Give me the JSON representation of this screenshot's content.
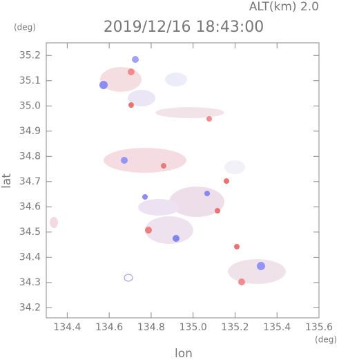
{
  "chart_data": {
    "type": "map",
    "header": "ALT(km)  2.0",
    "title": "2019/12/16 18:43:00",
    "y_unit": "(deg)",
    "x_unit": "(deg)",
    "ylabel": "lat",
    "xlabel": "lon",
    "xlim": [
      134.3,
      135.6
    ],
    "xticks": [
      {
        "value": 134.4,
        "label": "134.4"
      },
      {
        "value": 134.6,
        "label": "134.6"
      },
      {
        "value": 134.8,
        "label": "134.8"
      },
      {
        "value": 135.0,
        "label": "135.0"
      },
      {
        "value": 135.2,
        "label": "135.2"
      },
      {
        "value": 135.4,
        "label": "135.4"
      },
      {
        "value": 135.6,
        "label": "135.6"
      }
    ],
    "ylim": [
      34.16,
      35.25
    ],
    "yticks": [
      {
        "value": 34.2,
        "label": "34.2"
      },
      {
        "value": 34.3,
        "label": "34.3"
      },
      {
        "value": 34.4,
        "label": "34.4"
      },
      {
        "value": 34.5,
        "label": "34.5"
      },
      {
        "value": 34.6,
        "label": "34.6"
      },
      {
        "value": 34.7,
        "label": "34.7"
      },
      {
        "value": 34.8,
        "label": "34.8"
      },
      {
        "value": 34.9,
        "label": "34.9"
      },
      {
        "value": 35.0,
        "label": "35.0"
      },
      {
        "value": 35.1,
        "label": "35.1"
      },
      {
        "value": 35.2,
        "label": "35.2"
      }
    ]
  }
}
